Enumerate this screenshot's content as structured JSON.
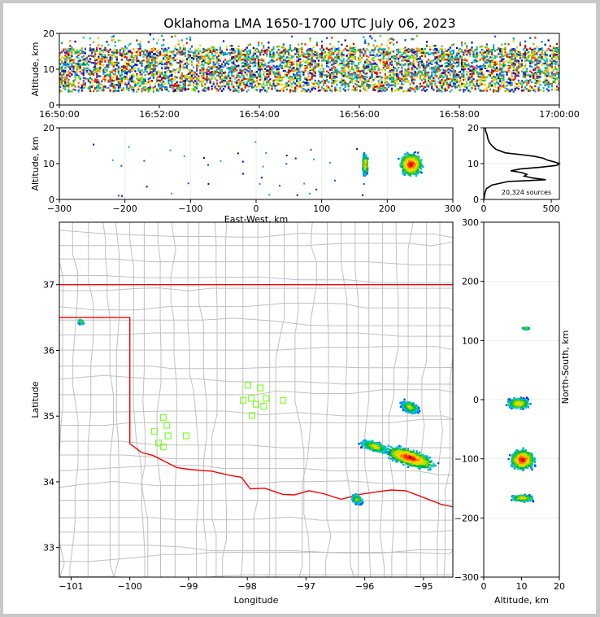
{
  "title": "Oklahoma LMA 1650-1700 UTC July 06, 2023",
  "colors": {
    "source_palette": [
      "#0000c8",
      "#0050ff",
      "#00a0ff",
      "#00d0b0",
      "#00b050",
      "#60d000",
      "#c8e000",
      "#ffd000",
      "#ff8000",
      "#ff2000",
      "#c00000",
      "#600000"
    ],
    "state_border": "#ff0000",
    "county_lines": "#c0c0c0",
    "stations": "#7fff2a",
    "histogram": "#000000"
  },
  "chart_data": [
    {
      "id": "time_height",
      "type": "heatmap",
      "ylabel": "Altitude, km",
      "xlim": [
        "16:50:00",
        "17:00:00"
      ],
      "ylim": [
        0,
        20
      ],
      "xticks": [
        "16:50:00",
        "16:52:00",
        "16:54:00",
        "16:56:00",
        "16:58:00",
        "17:00:00"
      ],
      "yticks": [
        "0",
        "10",
        "20"
      ],
      "source_altitude_band_km": [
        4,
        16
      ]
    },
    {
      "id": "ew_height",
      "type": "heatmap",
      "xlabel": "East-West, km",
      "ylabel": "Altitude, km",
      "xlim": [
        -300,
        300
      ],
      "ylim": [
        0,
        20
      ],
      "xticks": [
        "−300",
        "−200",
        "−100",
        "0",
        "100",
        "200",
        "300"
      ],
      "yticks": [
        "0",
        "10",
        "20"
      ],
      "clusters": [
        {
          "x": 235,
          "y": 10,
          "spread_x": 22,
          "spread_y": 4,
          "weight": 1.0
        },
        {
          "x": 165,
          "y": 10,
          "spread_x": 5,
          "spread_y": 4,
          "weight": 0.5
        }
      ]
    },
    {
      "id": "altitude_histogram",
      "type": "line",
      "xlim": [
        0,
        560
      ],
      "ylim": [
        0,
        20
      ],
      "xticks": [
        "0",
        "500"
      ],
      "yticks": [
        "0",
        "10",
        "20"
      ],
      "annotation": "20,324 sources",
      "altitude_km": [
        0,
        1,
        2,
        3,
        4,
        5,
        5.5,
        6,
        6.5,
        7,
        7.5,
        8,
        8.5,
        9,
        9.5,
        10,
        10.5,
        11,
        11.5,
        12,
        12.5,
        13,
        14,
        15,
        16,
        17,
        18,
        19,
        20
      ],
      "count": [
        2,
        5,
        10,
        20,
        60,
        180,
        460,
        360,
        300,
        320,
        280,
        200,
        270,
        420,
        540,
        560,
        520,
        470,
        440,
        380,
        280,
        160,
        90,
        60,
        40,
        30,
        25,
        15,
        10
      ]
    },
    {
      "id": "plan_view",
      "type": "scatter",
      "xlabel": "Longitude",
      "ylabel": "Latitude",
      "xlim": [
        -101.2,
        -94.5
      ],
      "ylim": [
        32.55,
        37.95
      ],
      "xticks": [
        "−101",
        "−100",
        "−99",
        "−98",
        "−97",
        "−96",
        "−95"
      ],
      "yticks": [
        "33",
        "34",
        "35",
        "36",
        "37"
      ],
      "stations": [
        [
          -97.99,
          35.47
        ],
        [
          -97.78,
          35.43
        ],
        [
          -97.93,
          35.27
        ],
        [
          -98.07,
          35.24
        ],
        [
          -97.68,
          35.27
        ],
        [
          -97.72,
          35.15
        ],
        [
          -97.85,
          35.18
        ],
        [
          -97.39,
          35.24
        ],
        [
          -97.92,
          35.01
        ],
        [
          -99.43,
          34.98
        ],
        [
          -99.37,
          34.86
        ],
        [
          -99.58,
          34.77
        ],
        [
          -99.35,
          34.7
        ],
        [
          -99.04,
          34.7
        ],
        [
          -99.51,
          34.59
        ],
        [
          -99.43,
          34.53
        ]
      ],
      "clusters": [
        {
          "lon": -95.25,
          "lat": 34.38,
          "spread_lon": 0.55,
          "spread_lat": 0.16,
          "weight": 1.0
        },
        {
          "lon": -95.85,
          "lat": 34.55,
          "spread_lon": 0.3,
          "spread_lat": 0.1,
          "weight": 0.4
        },
        {
          "lon": -96.15,
          "lat": 33.75,
          "spread_lon": 0.12,
          "spread_lat": 0.1,
          "weight": 0.25
        },
        {
          "lon": -95.25,
          "lat": 35.15,
          "spread_lon": 0.2,
          "spread_lat": 0.12,
          "weight": 0.3
        },
        {
          "lon": -100.85,
          "lat": 36.45,
          "spread_lon": 0.08,
          "spread_lat": 0.06,
          "weight": 0.04
        }
      ]
    },
    {
      "id": "ns_height",
      "type": "heatmap",
      "xlabel": "Altitude, km",
      "ylabel": "North-South, km",
      "xlim": [
        0,
        20
      ],
      "ylim": [
        -300,
        300
      ],
      "xticks": [
        "0",
        "10",
        "20"
      ],
      "yticks": [
        "−300",
        "−200",
        "−100",
        "0",
        "100",
        "200",
        "300"
      ],
      "clusters": [
        {
          "x": 10,
          "y": -100,
          "spread_x": 4,
          "spread_y": 22,
          "weight": 1.0
        },
        {
          "x": 10,
          "y": -165,
          "spread_x": 4,
          "spread_y": 7,
          "weight": 0.4
        },
        {
          "x": 9,
          "y": -5,
          "spread_x": 4,
          "spread_y": 12,
          "weight": 0.35
        },
        {
          "x": 11,
          "y": 122,
          "spread_x": 1.5,
          "spread_y": 3,
          "weight": 0.05
        }
      ]
    }
  ]
}
